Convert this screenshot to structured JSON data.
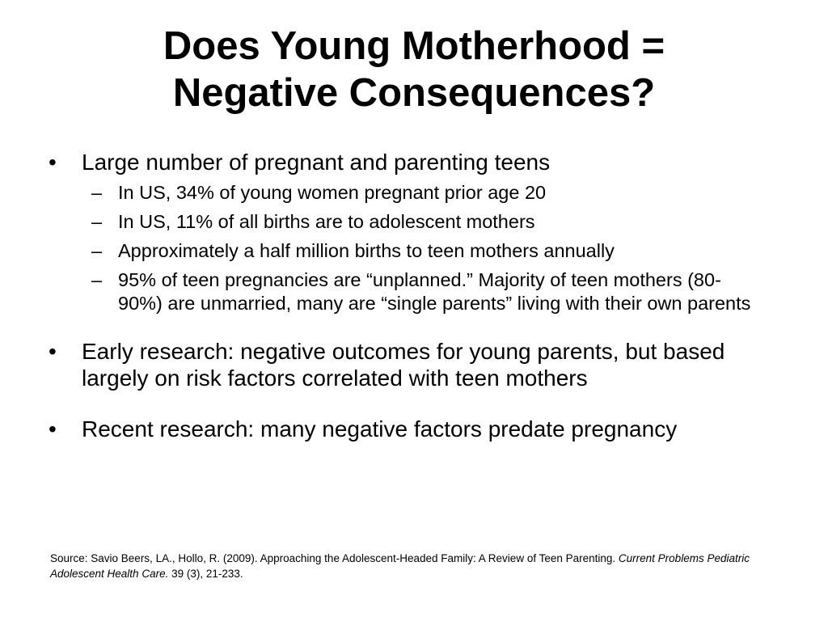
{
  "slide": {
    "title_line1": "Does Young Motherhood =",
    "title_line2": "Negative Consequences?",
    "bullet_symbol": "•",
    "dash_symbol": "–",
    "bullets": [
      {
        "text": "Large number of pregnant and parenting teens",
        "subs": [
          "In US, 34% of young women pregnant prior age 20",
          "In US, 11% of all births are to adolescent mothers",
          "Approximately a half million births to teen mothers annually",
          "95% of teen pregnancies are “unplanned.” Majority of teen mothers (80-90%) are unmarried, many are “single parents” living with their own parents"
        ]
      },
      {
        "text": "Early research: negative outcomes for young parents, but based largely on risk factors correlated with teen mothers"
      },
      {
        "text": "Recent research: many negative factors predate pregnancy"
      }
    ],
    "source": {
      "prefix": "Source: Savio Beers, LA., Hollo, R. (2009).  Approaching the Adolescent-Headed Family: A Review of Teen Parenting. ",
      "journal": "Current Problems Pediatric Adolescent Health Care.",
      "suffix": "  39 (3), 21-233."
    }
  }
}
